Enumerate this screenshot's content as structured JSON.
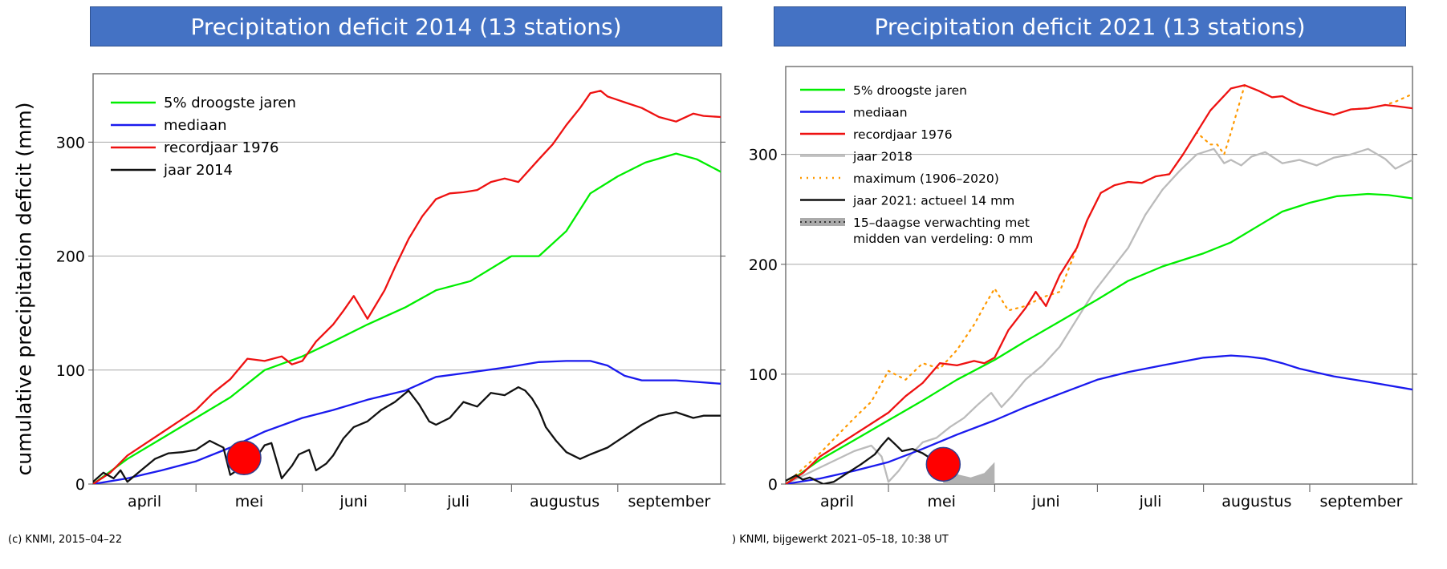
{
  "axis_title": "cumulative precipitation deficit (mm)",
  "footer_left": "(c) KNMI, 2015–04–22",
  "footer_right": ") KNMI, bijgewerkt 2021–05–18, 10:38 UT",
  "chart_data": [
    {
      "type": "line",
      "title": "Precipitation deficit 2014 (13 stations)",
      "ylabel": "cumulative precipitation deficit (mm)",
      "xlabel": "",
      "xlim": [
        0,
        183
      ],
      "ylim": [
        0,
        360
      ],
      "yticks": [
        0,
        100,
        200,
        300
      ],
      "x_tick_labels": [
        {
          "label": "april",
          "x": 15
        },
        {
          "label": "mei",
          "x": 45.5
        },
        {
          "label": "juni",
          "x": 76
        },
        {
          "label": "juli",
          "x": 106.5
        },
        {
          "label": "augustus",
          "x": 137.5
        },
        {
          "label": "september",
          "x": 168
        }
      ],
      "grid": true,
      "legend_position": "top-left",
      "series": [
        {
          "name": "5% droogste jaren",
          "color": "#00ee00",
          "style": "solid",
          "x": [
            0,
            10,
            20,
            30,
            40,
            50,
            61,
            70,
            80,
            91,
            100,
            110,
            122,
            130,
            138,
            145,
            153,
            161,
            170,
            176,
            183
          ],
          "y": [
            0,
            22,
            40,
            58,
            76,
            100,
            112,
            125,
            140,
            155,
            170,
            178,
            200,
            200,
            222,
            255,
            270,
            282,
            290,
            285,
            274
          ]
        },
        {
          "name": "mediaan",
          "color": "#1a1aee",
          "style": "solid",
          "x": [
            0,
            10,
            20,
            30,
            40,
            50,
            61,
            70,
            80,
            91,
            100,
            110,
            122,
            130,
            138,
            145,
            150,
            155,
            160,
            170,
            183
          ],
          "y": [
            0,
            5,
            12,
            20,
            32,
            46,
            58,
            65,
            74,
            82,
            94,
            98,
            103,
            107,
            108,
            108,
            104,
            95,
            91,
            91,
            88
          ]
        },
        {
          "name": "recordjaar 1976",
          "color": "#ee1111",
          "style": "solid",
          "x": [
            0,
            5,
            10,
            15,
            20,
            25,
            30,
            35,
            40,
            45,
            50,
            55,
            58,
            61,
            65,
            70,
            73,
            76,
            80,
            85,
            88,
            92,
            96,
            100,
            104,
            108,
            112,
            116,
            120,
            124,
            130,
            134,
            138,
            142,
            145,
            148,
            150,
            155,
            160,
            165,
            170,
            175,
            178,
            183
          ],
          "y": [
            0,
            10,
            25,
            35,
            45,
            55,
            65,
            80,
            92,
            110,
            108,
            112,
            105,
            108,
            125,
            140,
            152,
            165,
            145,
            170,
            190,
            215,
            235,
            250,
            255,
            256,
            258,
            265,
            268,
            265,
            285,
            298,
            315,
            330,
            343,
            345,
            340,
            335,
            330,
            322,
            318,
            325,
            323,
            322
          ]
        },
        {
          "name": "jaar 2014",
          "color": "#111111",
          "style": "solid",
          "x": [
            0,
            3,
            6,
            8,
            10,
            14,
            18,
            22,
            26,
            30,
            34,
            38,
            40,
            42,
            45,
            48,
            50,
            52,
            55,
            58,
            60,
            63,
            65,
            68,
            70,
            73,
            76,
            80,
            84,
            88,
            92,
            95,
            98,
            100,
            104,
            108,
            112,
            116,
            120,
            124,
            126,
            128,
            130,
            132,
            135,
            138,
            142,
            145,
            150,
            155,
            160,
            165,
            170,
            175,
            178,
            183
          ],
          "y": [
            2,
            10,
            5,
            12,
            2,
            12,
            22,
            27,
            28,
            30,
            38,
            32,
            8,
            12,
            18,
            25,
            34,
            36,
            5,
            16,
            26,
            30,
            12,
            18,
            25,
            40,
            50,
            55,
            65,
            72,
            82,
            70,
            55,
            52,
            58,
            72,
            68,
            80,
            78,
            85,
            82,
            75,
            65,
            50,
            38,
            28,
            22,
            26,
            32,
            42,
            52,
            60,
            63,
            58,
            60,
            60
          ]
        }
      ],
      "annotations": [
        {
          "type": "marker",
          "shape": "circle",
          "color": "#ff0000",
          "x": 44,
          "y": 23
        }
      ]
    },
    {
      "type": "line",
      "title": "Precipitation deficit 2021 (13 stations)",
      "ylabel": "",
      "xlabel": "",
      "xlim": [
        0,
        183
      ],
      "ylim": [
        0,
        380
      ],
      "yticks": [
        0,
        100,
        200,
        300
      ],
      "x_tick_labels": [
        {
          "label": "april",
          "x": 15
        },
        {
          "label": "mei",
          "x": 45.5
        },
        {
          "label": "juni",
          "x": 76
        },
        {
          "label": "juli",
          "x": 106.5
        },
        {
          "label": "augustus",
          "x": 137.5
        },
        {
          "label": "september",
          "x": 168
        }
      ],
      "grid": true,
      "legend_position": "top-left",
      "series": [
        {
          "name": "5% droogste jaren",
          "color": "#00ee00",
          "style": "solid",
          "x": [
            0,
            10,
            20,
            30,
            40,
            50,
            61,
            70,
            80,
            91,
            100,
            110,
            122,
            130,
            138,
            145,
            153,
            161,
            170,
            176,
            183
          ],
          "y": [
            0,
            22,
            40,
            58,
            76,
            95,
            113,
            130,
            148,
            168,
            185,
            198,
            210,
            220,
            235,
            248,
            256,
            262,
            264,
            263,
            260
          ]
        },
        {
          "name": "mediaan",
          "color": "#1a1aee",
          "style": "solid",
          "x": [
            0,
            10,
            20,
            30,
            40,
            50,
            61,
            70,
            80,
            91,
            100,
            110,
            122,
            130,
            135,
            140,
            145,
            150,
            160,
            170,
            183
          ],
          "y": [
            0,
            5,
            12,
            20,
            32,
            45,
            58,
            70,
            82,
            95,
            102,
            108,
            115,
            117,
            116,
            114,
            110,
            105,
            98,
            93,
            86
          ]
        },
        {
          "name": "recordjaar 1976",
          "color": "#ee1111",
          "style": "solid",
          "x": [
            0,
            5,
            10,
            15,
            20,
            25,
            30,
            35,
            40,
            45,
            50,
            55,
            58,
            61,
            65,
            70,
            73,
            76,
            80,
            85,
            88,
            92,
            96,
            100,
            104,
            108,
            112,
            116,
            120,
            124,
            130,
            134,
            138,
            142,
            145,
            148,
            150,
            155,
            160,
            165,
            170,
            175,
            178,
            183
          ],
          "y": [
            0,
            10,
            25,
            35,
            45,
            55,
            65,
            80,
            92,
            110,
            108,
            112,
            110,
            115,
            140,
            160,
            175,
            162,
            190,
            215,
            240,
            265,
            272,
            275,
            274,
            280,
            282,
            300,
            320,
            340,
            360,
            363,
            358,
            352,
            353,
            348,
            345,
            340,
            336,
            341,
            342,
            345,
            344,
            342
          ]
        },
        {
          "name": "jaar 2018",
          "color": "#bbbbbb",
          "style": "solid",
          "x": [
            0,
            10,
            20,
            25,
            28,
            30,
            33,
            36,
            40,
            44,
            48,
            52,
            56,
            60,
            63,
            66,
            70,
            75,
            80,
            85,
            90,
            95,
            100,
            105,
            110,
            115,
            120,
            125,
            128,
            130,
            133,
            136,
            140,
            145,
            150,
            155,
            160,
            165,
            170,
            175,
            178,
            183
          ],
          "y": [
            0,
            15,
            30,
            35,
            25,
            2,
            12,
            25,
            38,
            42,
            52,
            60,
            72,
            83,
            70,
            80,
            95,
            108,
            125,
            150,
            175,
            195,
            215,
            245,
            268,
            285,
            300,
            305,
            292,
            295,
            290,
            298,
            302,
            292,
            295,
            290,
            297,
            300,
            305,
            296,
            287,
            295
          ]
        },
        {
          "name": "maximum (1906–2020)",
          "color": "#ff9900",
          "style": "dotted",
          "x": [
            0,
            10,
            20,
            25,
            30,
            35,
            40,
            45,
            50,
            55,
            58,
            61,
            65,
            70,
            75,
            80,
            85,
            88,
            92,
            96,
            100,
            104,
            108,
            112,
            116,
            120,
            124,
            126,
            128,
            130,
            134,
            138,
            142,
            145,
            148,
            150,
            155,
            160,
            165,
            170,
            175,
            178,
            183
          ],
          "y": [
            0,
            28,
            60,
            75,
            103,
            95,
            110,
            105,
            122,
            145,
            162,
            178,
            158,
            162,
            170,
            175,
            215,
            240,
            265,
            272,
            275,
            274,
            280,
            282,
            300,
            320,
            309,
            309,
            300,
            320,
            363,
            358,
            352,
            353,
            348,
            345,
            340,
            336,
            341,
            342,
            345,
            348,
            355
          ]
        },
        {
          "name": "jaar 2021: actueel 14 mm",
          "color": "#111111",
          "style": "solid",
          "x": [
            0,
            3,
            5,
            7,
            9,
            11,
            14,
            18,
            22,
            26,
            28,
            30,
            32,
            34,
            37,
            40,
            43,
            46
          ],
          "y": [
            3,
            8,
            4,
            6,
            3,
            0,
            2,
            10,
            18,
            27,
            35,
            42,
            36,
            30,
            32,
            28,
            22,
            14
          ]
        },
        {
          "name": "15–daagse verwachting met\nmidden van verdeling: 0 mm",
          "color": "#aaaaaa",
          "style": "band-dotted",
          "x": [
            46,
            50,
            54,
            58,
            61
          ],
          "y": [
            14,
            9,
            6,
            10,
            20
          ],
          "y_low": [
            0,
            0,
            0,
            0,
            0
          ]
        }
      ],
      "annotations": [
        {
          "type": "marker",
          "shape": "circle",
          "color": "#ff0000",
          "x": 46,
          "y": 18
        }
      ]
    }
  ]
}
